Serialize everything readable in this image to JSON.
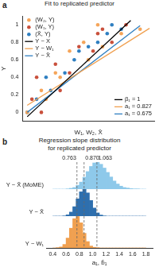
{
  "chart_data": [
    {
      "panel": "a",
      "type": "scatter",
      "title": "Fit to replicated predictor",
      "x_label": "W₁, W₂, X̂",
      "y_label": "Y",
      "xlim": [
        -0.1,
        1.3
      ],
      "ylim": [
        -0.1,
        1.1
      ],
      "yticks": [
        0,
        0.2,
        0.4,
        0.6,
        0.8,
        1
      ],
      "tick_labels": "y",
      "grid": false,
      "legend": "upper left",
      "series": [
        {
          "name": "(W₂, Y)",
          "color": "#f5a55a",
          "marker": "circle",
          "x": [
            -0.05,
            0.15,
            0.1,
            0.3,
            0.25,
            0.6,
            0.4,
            0.75,
            0.55,
            0.95,
            0.7,
            1.15
          ],
          "values": [
            0,
            0.15,
            0.25,
            0.4,
            0.45,
            0.6,
            0.7,
            0.75,
            0.8,
            0.9,
            1,
            0.95
          ]
        },
        {
          "name": "(W₁, Y)",
          "color": "#c9503c",
          "marker": "circle",
          "x": [
            0.1,
            0,
            0.3,
            0.05,
            0.4,
            0.25,
            0.65,
            0.5,
            0.85,
            0.7,
            1,
            0.75
          ],
          "values": [
            0,
            0.15,
            0.25,
            0.4,
            0.45,
            0.55,
            0.7,
            0.75,
            0.8,
            0.9,
            1,
            0.95
          ]
        },
        {
          "name": "(X̂, Y)",
          "color": "#2f7fc1",
          "marker": "circle",
          "x": [
            -0.05,
            0.05,
            0.2,
            0.15,
            0.35,
            0.45,
            0.5,
            0.6,
            0.7,
            0.8,
            0.85,
            0.95
          ],
          "values": [
            0,
            0.15,
            0.25,
            0.4,
            0.45,
            0.6,
            0.7,
            0.75,
            0.8,
            0.9,
            1,
            0.95
          ]
        },
        {
          "name": "Y ~ X",
          "type": "line",
          "color": "#000000",
          "line_style": "solid",
          "x": [
            -0.05,
            1.05
          ],
          "values": [
            -0.05,
            1.05
          ]
        },
        {
          "name": "Y ~ W₁",
          "type": "line",
          "color": "#f0a050",
          "line_style": "solid",
          "x": [
            -0.05,
            1.25
          ],
          "values": [
            0.08,
            0.96
          ]
        },
        {
          "name": "Y ~ X̂",
          "type": "line",
          "color": "#2f7fc1",
          "line_style": "solid",
          "x": [
            -0.05,
            1.15
          ],
          "values": [
            0,
            0.99
          ]
        }
      ],
      "annotations": [
        {
          "text": "β₁ = 1",
          "color": "#000000"
        },
        {
          "text": "a₁ = 0.827",
          "color": "#f0a050"
        },
        {
          "text": "a₁ = 0.675",
          "color": "#2f7fc1"
        }
      ]
    },
    {
      "panel": "b",
      "type": "histogram",
      "title": [
        "Regression slope distribution",
        "for replicated predictor"
      ],
      "x_label": "a₁, b̂₁",
      "xlim": [
        0.4,
        1.8
      ],
      "xticks": [
        0.4,
        0.6,
        0.8,
        {
          "value": 1,
          "label": "1.0"
        },
        1.2,
        1.4,
        1.6,
        1.8
      ],
      "ylim": [
        0,
        100
      ],
      "tick_labels": "x",
      "grid": false,
      "bins": [
        0.4,
        0.45,
        0.5,
        0.55,
        0.6,
        0.65,
        0.7,
        0.75,
        0.8,
        0.85,
        0.9,
        0.95,
        1,
        1.05,
        1.1,
        1.15,
        1.2,
        1.25,
        1.3,
        1.35,
        1.4,
        1.45,
        1.5,
        1.55,
        1.6,
        1.65,
        1.7,
        1.75,
        1.8
      ],
      "series": [
        {
          "name": "Y ~ X̂ (MoME)",
          "color": "#8ec9ea",
          "values": [
            0,
            0,
            0,
            0,
            1,
            3,
            6,
            14,
            26,
            44,
            65,
            84,
            97,
            100,
            92,
            78,
            62,
            45,
            30,
            19,
            11,
            6,
            4,
            2,
            1,
            1,
            0,
            0
          ]
        },
        {
          "name": "Y ~ X̂",
          "color": "#2e6fae",
          "values": [
            0,
            0,
            0,
            1,
            5,
            15,
            35,
            64,
            90,
            100,
            86,
            58,
            30,
            12,
            4,
            1,
            0,
            0,
            0,
            0,
            0,
            0,
            0,
            0,
            0,
            0,
            0,
            0
          ]
        },
        {
          "name": "Y ~ W₁",
          "color": "#f0a050",
          "values": [
            0,
            1,
            3,
            11,
            31,
            62,
            92,
            99,
            79,
            46,
            20,
            6,
            2,
            1,
            0,
            0,
            0,
            0,
            0,
            0,
            0,
            0,
            0,
            0,
            0,
            0,
            0,
            0
          ]
        }
      ],
      "reference_lines": [
        {
          "value": 0.763,
          "label": "0.763",
          "line_style": "dashed"
        },
        {
          "value": 0.87,
          "label": "0.870",
          "line_style": "dashed"
        },
        {
          "value": 1.063,
          "label": "1.063",
          "line_style": "dashed"
        }
      ]
    }
  ]
}
